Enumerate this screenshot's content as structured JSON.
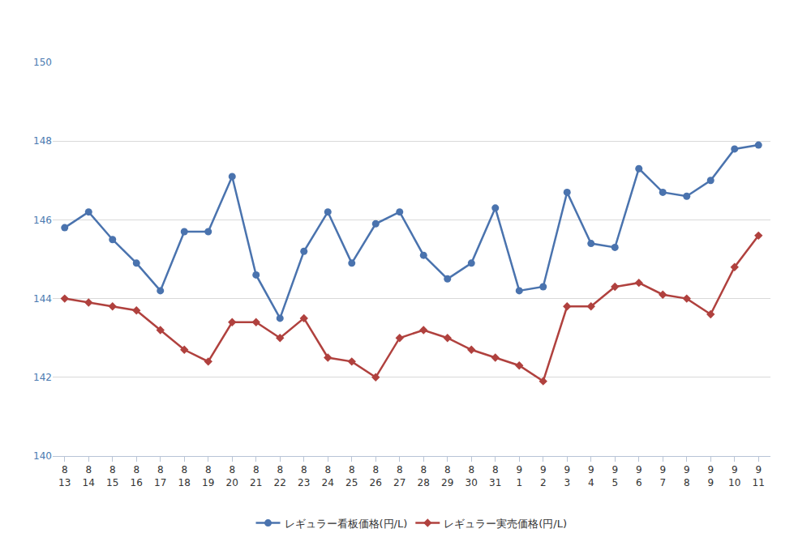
{
  "chart_data": {
    "type": "line",
    "categories": [
      "8\n13",
      "8\n14",
      "8\n15",
      "8\n16",
      "8\n17",
      "8\n18",
      "8\n19",
      "8\n20",
      "8\n21",
      "8\n22",
      "8\n23",
      "8\n24",
      "8\n25",
      "8\n26",
      "8\n27",
      "8\n28",
      "8\n29",
      "8\n30",
      "8\n31",
      "9\n1",
      "9\n2",
      "9\n3",
      "9\n4",
      "9\n5",
      "9\n6",
      "9\n7",
      "9\n8",
      "9\n9",
      "9\n10",
      "9\n11"
    ],
    "series": [
      {
        "name": "レギュラー看板価格(円/L)",
        "color": "#4a73ae",
        "marker": "circle",
        "values": [
          145.8,
          146.2,
          145.5,
          144.9,
          144.2,
          145.7,
          145.7,
          147.1,
          144.6,
          143.5,
          145.2,
          146.2,
          144.9,
          145.9,
          146.2,
          145.1,
          144.5,
          144.9,
          146.3,
          144.2,
          144.3,
          146.7,
          145.4,
          145.3,
          147.3,
          146.7,
          146.6,
          147.0,
          147.8,
          147.9
        ]
      },
      {
        "name": "レギュラー実売価格(円/L)",
        "color": "#b0413e",
        "marker": "diamond",
        "values": [
          144.0,
          143.9,
          143.8,
          143.7,
          143.2,
          142.7,
          142.4,
          143.4,
          143.4,
          143.0,
          143.5,
          142.5,
          142.4,
          142.0,
          143.0,
          143.2,
          143.0,
          142.7,
          142.5,
          142.3,
          141.9,
          143.8,
          143.8,
          144.3,
          144.4,
          144.1,
          144.0,
          143.6,
          144.8,
          145.6
        ]
      }
    ],
    "ylim": [
      140,
      150
    ],
    "yticks": [
      140,
      142,
      144,
      146,
      148,
      150
    ],
    "grid": true,
    "legend": "bottom"
  }
}
